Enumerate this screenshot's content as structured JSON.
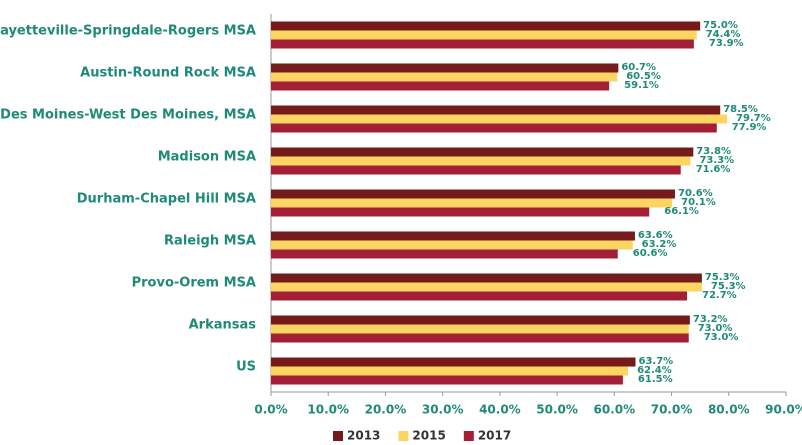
{
  "chart_data": {
    "type": "bar",
    "orientation": "horizontal",
    "categories": [
      "Fayetteville-Springdale-Rogers MSA",
      "Austin-Round Rock MSA",
      "Des Moines-West Des Moines, MSA",
      "Madison MSA",
      "Durham-Chapel Hill MSA",
      "Raleigh MSA",
      "Provo-Orem MSA",
      "Arkansas",
      "US"
    ],
    "series": [
      {
        "name": "2013",
        "color": "#751b1b",
        "values": [
          75.0,
          60.7,
          78.5,
          73.8,
          70.6,
          63.6,
          75.3,
          73.2,
          63.7
        ],
        "value_labels": [
          "75.0%",
          "60.7%",
          "78.5%",
          "73.8%",
          "70.6%",
          "63.6%",
          "75.3%",
          "73.2%",
          "63.7%"
        ]
      },
      {
        "name": "2015",
        "color": "#fcd462",
        "values": [
          74.4,
          60.5,
          79.7,
          73.3,
          70.1,
          63.2,
          75.3,
          73.0,
          62.4
        ],
        "value_labels": [
          "74.4%",
          "60.5%",
          "79.7%",
          "73.3%",
          "70.1%",
          "63.2%",
          "75.3%",
          "73.0%",
          "62.4%"
        ]
      },
      {
        "name": "2017",
        "color": "#a31f35",
        "values": [
          73.9,
          59.1,
          77.9,
          71.6,
          66.1,
          60.6,
          72.7,
          73.0,
          61.5
        ],
        "value_labels": [
          "73.9%",
          "59.1%",
          "77.9%",
          "71.6%",
          "66.1%",
          "60.6%",
          "72.7%",
          "73.0%",
          "61.5%"
        ]
      }
    ],
    "xlim": [
      0,
      90
    ],
    "xticks": [
      {
        "value": 0,
        "label": "0.0%"
      },
      {
        "value": 10,
        "label": "10.0%"
      },
      {
        "value": 20,
        "label": "20.0%"
      },
      {
        "value": 30,
        "label": "30.0%"
      },
      {
        "value": 40,
        "label": "40.0%"
      },
      {
        "value": 50,
        "label": "50.0%"
      },
      {
        "value": 60,
        "label": "60.0%"
      },
      {
        "value": 70,
        "label": "70.0%"
      },
      {
        "value": 80,
        "label": "80.0%"
      },
      {
        "value": 90,
        "label": "90.0%"
      }
    ],
    "legend": "bottom",
    "grid": false
  }
}
